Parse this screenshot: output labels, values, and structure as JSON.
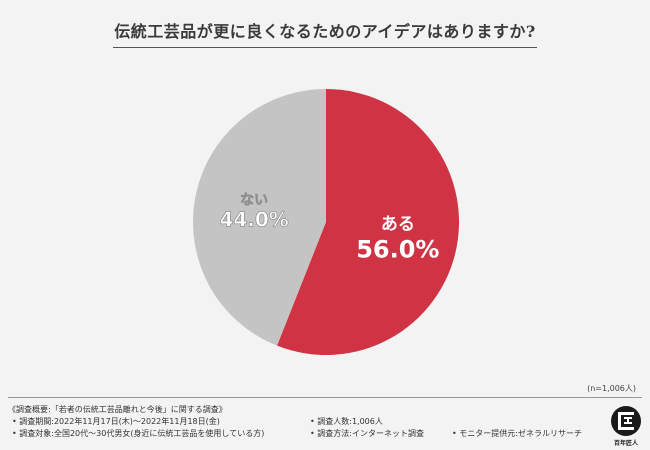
{
  "title": "伝統工芸品が更に良くなるためのアイデアはありますか?",
  "chart_data": {
    "type": "pie",
    "slices": [
      {
        "label": "ある",
        "value": 56.0,
        "value_label": "56.0%",
        "color": "#cf3344"
      },
      {
        "label": "ない",
        "value": 44.0,
        "value_label": "44.0%",
        "color": "#c4c4c4"
      }
    ],
    "start": "12 o'clock",
    "direction": "clockwise"
  },
  "sample_size": "(n=1,006人)",
  "footer": {
    "overview": "《調査概要:「若者の伝統工芸品離れと今後」に関する調査》",
    "period": "• 調査期間:2022年11月17日(木)〜2022年11月18日(金)",
    "count": "• 調査人数:1,006人",
    "target": "• 調査対象:全国20代〜30代男女(身近に伝統工芸品を使用している方)",
    "method": "• 調査方法:インターネット調査",
    "provider": "• モニター提供元:ゼネラルリサーチ"
  },
  "logo_text": "百年匠人"
}
